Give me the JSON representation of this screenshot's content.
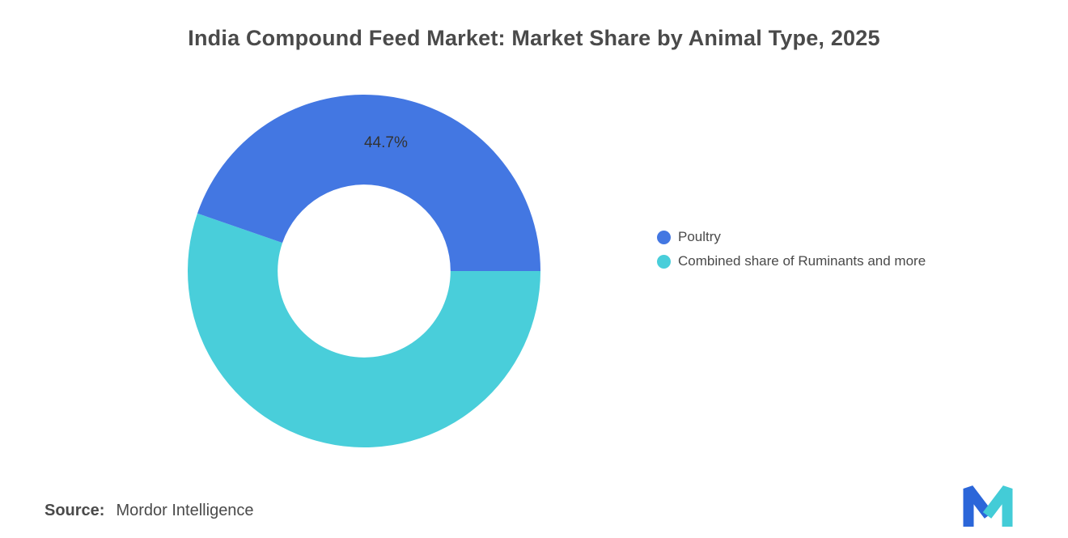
{
  "title": "India Compound Feed Market: Market Share by Animal Type, 2025",
  "chart_data": {
    "type": "pie",
    "subtype": "donut",
    "title": "India Compound Feed Market: Market Share by Animal Type, 2025",
    "categories": [
      "Poultry",
      "Combined share of Ruminants and more"
    ],
    "values": [
      44.7,
      55.3
    ],
    "colors": [
      "#4377E2",
      "#49CEDA"
    ],
    "data_labels": [
      "44.7%",
      ""
    ],
    "legend_position": "right",
    "start_angle_deg": 90,
    "inner_radius_ratio": 0.49
  },
  "legend": {
    "items": [
      {
        "label": "Poultry",
        "color": "#4377E2"
      },
      {
        "label": "Combined share of Ruminants and more",
        "color": "#49CEDA"
      }
    ]
  },
  "source": {
    "label": "Source:",
    "value": "Mordor Intelligence"
  },
  "logo": {
    "name": "mordor-intelligence-logo",
    "blue": "#2B66D9",
    "teal": "#43CCD7"
  }
}
